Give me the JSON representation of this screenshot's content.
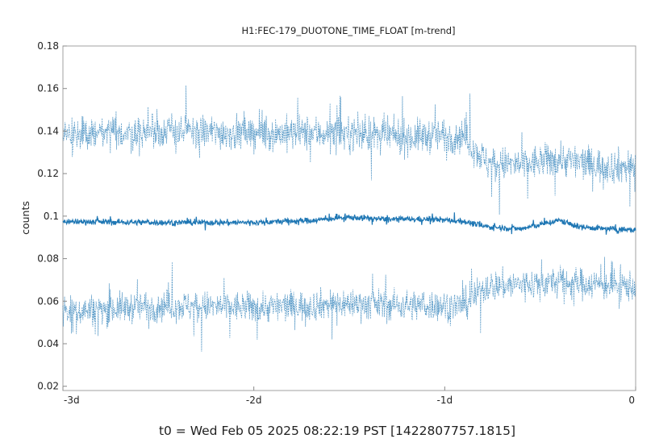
{
  "chart_data": {
    "type": "line",
    "title": "H1:FEC-179_DUOTONE_TIME_FLOAT [m-trend]",
    "xlabel": "",
    "ylabel": "counts",
    "footer": "t0 = Wed Feb 05 2025 08:22:19 PST [1422807757.1815]",
    "x_unit": "days relative to t0",
    "xlim": [
      -3,
      0
    ],
    "ylim": [
      0.018,
      0.18
    ],
    "x_ticks": [
      {
        "value": -3,
        "label": "-3d"
      },
      {
        "value": -2,
        "label": "-2d"
      },
      {
        "value": -1,
        "label": "-1d"
      },
      {
        "value": 0,
        "label": "0"
      }
    ],
    "y_ticks": [
      {
        "value": 0.02,
        "label": "0.02"
      },
      {
        "value": 0.04,
        "label": "0.04"
      },
      {
        "value": 0.06,
        "label": "0.06"
      },
      {
        "value": 0.08,
        "label": "0.08"
      },
      {
        "value": 0.1,
        "label": "0.1"
      },
      {
        "value": 0.12,
        "label": "0.12"
      },
      {
        "value": 0.14,
        "label": "0.14"
      },
      {
        "value": 0.16,
        "label": "0.16"
      },
      {
        "value": 0.18,
        "label": "0.18"
      }
    ],
    "grid": false,
    "series_color": "#1f77b4",
    "series": [
      {
        "role": "max",
        "line_style": "dashed",
        "x": [
          -3.0,
          -2.5,
          -2.0,
          -1.5,
          -1.2,
          -1.05,
          -0.9,
          -0.78,
          -0.6,
          -0.4,
          -0.2,
          0.0
        ],
        "values": [
          0.138,
          0.14,
          0.139,
          0.139,
          0.137,
          0.138,
          0.138,
          0.125,
          0.124,
          0.127,
          0.124,
          0.123
        ],
        "spread": 0.009
      },
      {
        "role": "mean",
        "line_style": "solid",
        "x": [
          -3.0,
          -2.5,
          -2.0,
          -1.7,
          -1.5,
          -1.3,
          -1.05,
          -0.9,
          -0.78,
          -0.6,
          -0.4,
          -0.3,
          -0.15,
          0.0
        ],
        "values": [
          0.0975,
          0.097,
          0.097,
          0.098,
          0.0995,
          0.0985,
          0.0985,
          0.0975,
          0.095,
          0.094,
          0.098,
          0.095,
          0.094,
          0.0935
        ],
        "spread": 0.0015
      },
      {
        "role": "min",
        "line_style": "dashed",
        "x": [
          -3.0,
          -2.5,
          -2.0,
          -1.5,
          -1.2,
          -1.05,
          -0.9,
          -0.78,
          -0.6,
          -0.4,
          -0.2,
          0.0
        ],
        "values": [
          0.055,
          0.058,
          0.057,
          0.059,
          0.058,
          0.058,
          0.058,
          0.067,
          0.068,
          0.069,
          0.068,
          0.067
        ],
        "spread": 0.008
      }
    ]
  }
}
